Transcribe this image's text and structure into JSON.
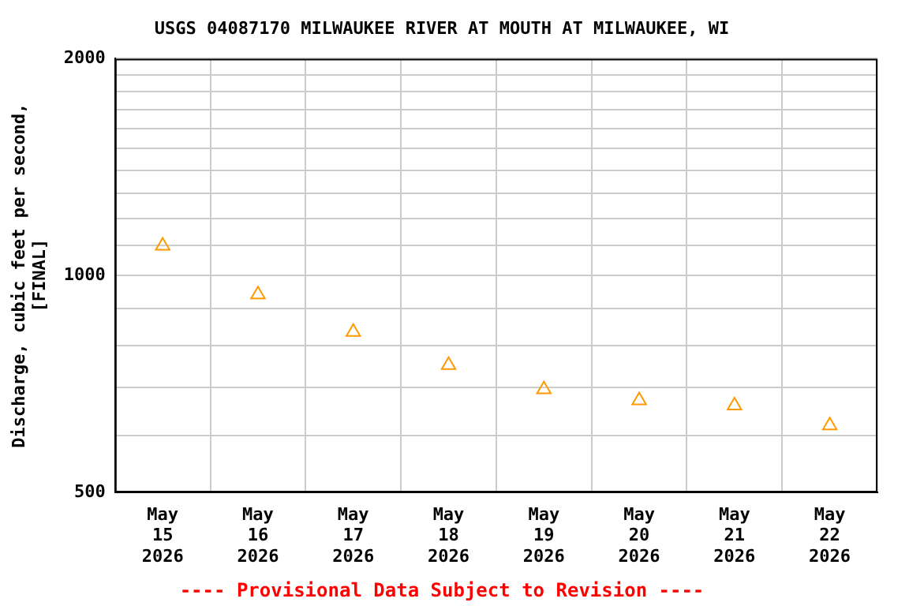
{
  "chart_data": {
    "type": "scatter",
    "title": "USGS 04087170 MILWAUKEE RIVER AT MOUTH AT MILWAUKEE, WI",
    "ylabel": "Discharge, cubic feet per second, [FINAL]",
    "annotations": [
      "---- Provisional Data Subject to Revision ----"
    ],
    "categories": [
      "May 15 2026",
      "May 16 2026",
      "May 17 2026",
      "May 18 2026",
      "May 19 2026",
      "May 20 2026",
      "May 21 2026",
      "May 22 2026"
    ],
    "series": [
      {
        "color": "#ff9900",
        "values": [
          1100,
          941,
          835,
          751,
          695,
          671,
          660,
          619
        ]
      }
    ],
    "log": true,
    "ylim": [
      500,
      2000
    ],
    "yticks": [
      500,
      {
        "value": 600,
        "label": null
      },
      {
        "value": 700,
        "label": null
      },
      {
        "value": 800,
        "label": null
      },
      {
        "value": 900,
        "label": null
      },
      1000,
      {
        "value": 1100,
        "label": null
      },
      {
        "value": 1200,
        "label": null
      },
      {
        "value": 1300,
        "label": null
      },
      {
        "value": 1400,
        "label": null
      },
      {
        "value": 1500,
        "label": null
      },
      {
        "value": 1600,
        "label": null
      },
      {
        "value": 1700,
        "label": null
      },
      {
        "value": 1800,
        "label": null
      },
      {
        "value": 1900,
        "label": null
      },
      2000
    ],
    "grid": true,
    "legend": false,
    "marker": "triangle"
  }
}
